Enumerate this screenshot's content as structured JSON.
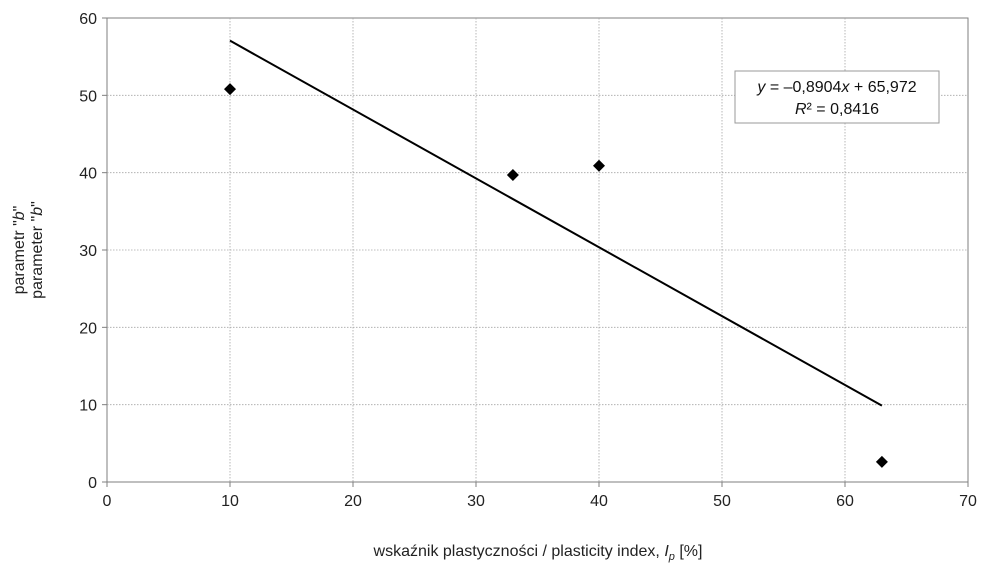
{
  "chart_data": {
    "type": "scatter",
    "title": "",
    "xlabel": {
      "text": "wskaźnik plastyczności / plasticity index, ",
      "symbol": "I",
      "subscript": "p",
      "unit": " [%]"
    },
    "ylabel": {
      "line1_prefix": "parametr \"",
      "line1_symbol": "b",
      "line1_suffix": "\"",
      "line2_prefix": "parameter \"",
      "line2_symbol": "b",
      "line2_suffix": "\""
    },
    "xlim": [
      0,
      70
    ],
    "ylim": [
      0,
      60
    ],
    "xticks": [
      0,
      10,
      20,
      30,
      40,
      50,
      60,
      70
    ],
    "yticks": [
      0,
      10,
      20,
      30,
      40,
      50,
      60
    ],
    "grid": true,
    "points": [
      {
        "x": 10,
        "y": 50.8
      },
      {
        "x": 33,
        "y": 39.7
      },
      {
        "x": 40,
        "y": 40.9
      },
      {
        "x": 63,
        "y": 2.6
      }
    ],
    "trendline": {
      "slope": -0.8904,
      "intercept": 65.972,
      "x_start": 10,
      "x_end": 63
    },
    "equation": {
      "line1_var": "y",
      "line1_rest": " = –0,8904",
      "line1_xvar": "x",
      "line1_tail": " + 65,972",
      "line2_var": "R",
      "line2_rest": "² = 0,8416"
    }
  }
}
